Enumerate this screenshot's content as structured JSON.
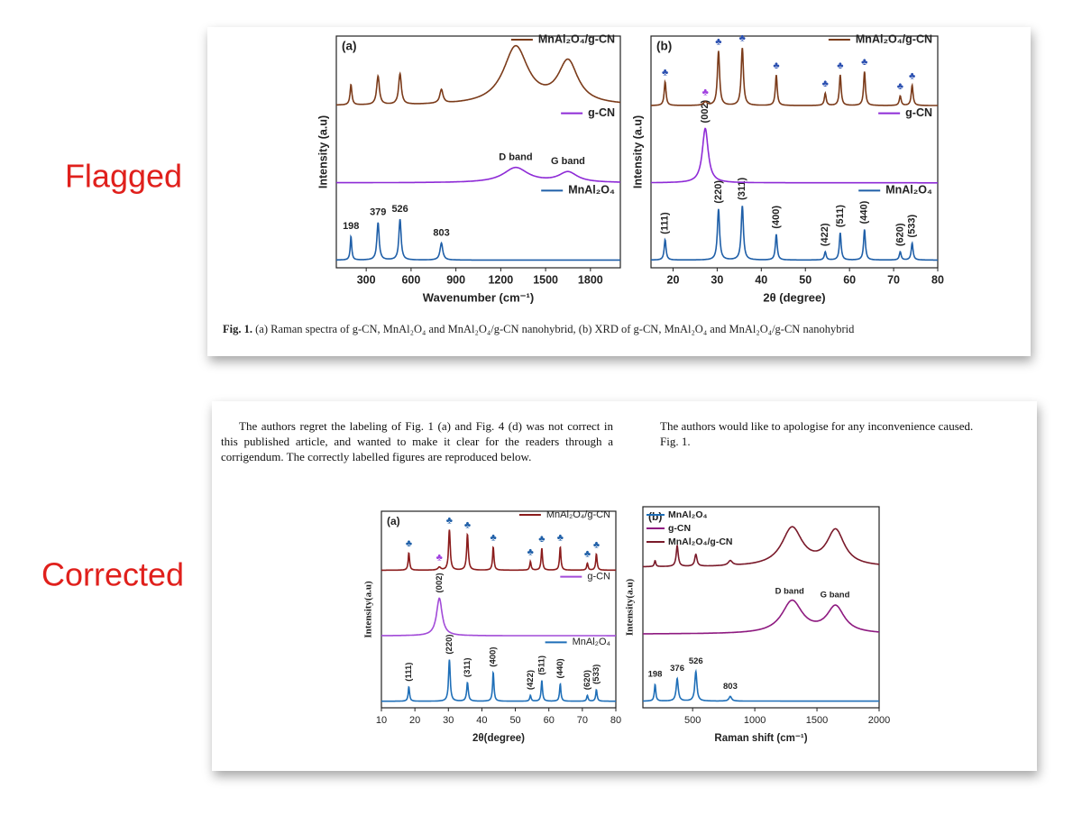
{
  "flagged_label": "Flagged",
  "corrected_label": "Corrected",
  "flagged": {
    "caption_label": "Fig. 1.",
    "caption_text": "(a) Raman spectra of g-CN, MnAl₂O₄ and MnAl₂O₄/g-CN nanohybrid, (b) XRD of g-CN, MnAl₂O₄ and MnAl₂O₄/g-CN nanohybrid",
    "charts": [
      {
        "type": "line",
        "title": "(a)",
        "xlabel": "Wavenumber (cm⁻¹)",
        "ylabel": "Intensity (a.u)",
        "xlim": [
          100,
          2000
        ],
        "xticks": [
          300,
          600,
          900,
          1200,
          1500,
          1800
        ],
        "legend": "band-right",
        "annotation_rotate": false,
        "series": [
          {
            "name": "MnAl₂O₄",
            "color": "#1f5fa8",
            "x": [
              198,
              379,
              526,
              803
            ],
            "values": [
              0.35,
              0.55,
              0.6,
              0.25
            ],
            "widths": [
              12,
              18,
              18,
              22
            ],
            "annotations": [
              {
                "text": "198",
                "x": 198
              },
              {
                "text": "379",
                "x": 379
              },
              {
                "text": "526",
                "x": 526
              },
              {
                "text": "803",
                "x": 803
              }
            ]
          },
          {
            "name": "g-CN",
            "color": "#8e2bd6",
            "x": [
              1300,
              1650
            ],
            "values": [
              0.22,
              0.15
            ],
            "widths": [
              200,
              150
            ],
            "annotations": [
              {
                "text": "D band",
                "x": 1300
              },
              {
                "text": "G band",
                "x": 1650
              }
            ]
          },
          {
            "name": "MnAl₂O₄/g-CN",
            "color": "#7b3b1a",
            "x": [
              198,
              379,
              526,
              803,
              1300,
              1650
            ],
            "values": [
              0.3,
              0.42,
              0.45,
              0.2,
              0.85,
              0.62
            ],
            "widths": [
              15,
              22,
              22,
              26,
              200,
              160
            ]
          }
        ]
      },
      {
        "type": "line",
        "title": "(b)",
        "xlabel": "2θ (degree)",
        "ylabel": "Intensity (a.u)",
        "xlim": [
          15,
          80
        ],
        "xticks": [
          20,
          30,
          40,
          50,
          60,
          70,
          80
        ],
        "legend": "band-right",
        "annotation_rotate": true,
        "marker_symbol": "♣",
        "series": [
          {
            "name": "MnAl₂O₄",
            "color": "#1f5fa8",
            "x": [
              18.2,
              30.3,
              35.7,
              43.4,
              54.5,
              57.9,
              63.4,
              71.5,
              74.2
            ],
            "values": [
              0.3,
              0.75,
              0.8,
              0.38,
              0.12,
              0.4,
              0.45,
              0.12,
              0.25
            ],
            "widths": [
              0.5,
              0.6,
              0.6,
              0.5,
              0.5,
              0.5,
              0.5,
              0.5,
              0.5
            ],
            "annotations": [
              {
                "text": "(111)",
                "x": 18.2
              },
              {
                "text": "(220)",
                "x": 30.3
              },
              {
                "text": "(311)",
                "x": 35.7
              },
              {
                "text": "(400)",
                "x": 43.4
              },
              {
                "text": "(422)",
                "x": 54.5
              },
              {
                "text": "(511)",
                "x": 57.9
              },
              {
                "text": "(440)",
                "x": 63.4
              },
              {
                "text": "(620)",
                "x": 71.5
              },
              {
                "text": "(533)",
                "x": 74.2
              }
            ]
          },
          {
            "name": "g-CN",
            "color": "#8e2bd6",
            "x": [
              27.3
            ],
            "values": [
              0.8
            ],
            "widths": [
              1.6
            ],
            "annotations": [
              {
                "text": "(002)",
                "x": 27.3
              }
            ]
          },
          {
            "name": "MnAl₂O₄/g-CN",
            "color": "#7b3b1a",
            "x": [
              18.2,
              27.3,
              30.3,
              35.7,
              43.4,
              54.5,
              57.9,
              63.4,
              71.5,
              74.2
            ],
            "values": [
              0.35,
              0.05,
              0.8,
              0.85,
              0.45,
              0.18,
              0.45,
              0.5,
              0.14,
              0.3
            ],
            "widths": [
              0.5,
              1.0,
              0.6,
              0.6,
              0.5,
              0.5,
              0.5,
              0.5,
              0.5,
              0.5
            ],
            "markers": [
              {
                "x": 18.2,
                "color": "#2a4fb0"
              },
              {
                "x": 27.3,
                "color": "#a040e0"
              },
              {
                "x": 30.3,
                "color": "#2a4fb0"
              },
              {
                "x": 35.7,
                "color": "#2a4fb0"
              },
              {
                "x": 43.4,
                "color": "#2a4fb0"
              },
              {
                "x": 54.5,
                "color": "#2a4fb0"
              },
              {
                "x": 57.9,
                "color": "#2a4fb0"
              },
              {
                "x": 63.4,
                "color": "#2a4fb0"
              },
              {
                "x": 71.5,
                "color": "#2a4fb0"
              },
              {
                "x": 74.2,
                "color": "#2a4fb0"
              }
            ]
          }
        ]
      }
    ]
  },
  "corrected": {
    "text_left": "The authors regret the labeling of Fig. 1 (a) and Fig. 4 (d) was not correct in this published article, and wanted to make it clear for the readers through a corrigendum. The correctly labelled figures are reproduced below.",
    "text_right": [
      "The authors would like to apologise for any inconvenience caused.",
      "Fig. 1."
    ],
    "charts": [
      {
        "type": "line",
        "title": "(a)",
        "xlabel": "2θ(degree)",
        "ylabel": "Intensity(a.u)",
        "xlim": [
          10,
          80
        ],
        "xticks": [
          10,
          20,
          30,
          40,
          50,
          60,
          70,
          80
        ],
        "legend": "band-right",
        "annotation_rotate": true,
        "marker_symbol": "♣",
        "series": [
          {
            "name": "MnAl₂O₄",
            "color": "#1f6fb8",
            "x": [
              18.2,
              30.3,
              35.7,
              43.4,
              54.5,
              57.9,
              63.4,
              71.5,
              74.2
            ],
            "values": [
              0.25,
              0.72,
              0.32,
              0.5,
              0.1,
              0.36,
              0.3,
              0.1,
              0.2
            ],
            "widths": [
              0.5,
              0.6,
              0.6,
              0.5,
              0.5,
              0.5,
              0.5,
              0.5,
              0.5
            ],
            "annotations": [
              {
                "text": "(111)",
                "x": 18.2
              },
              {
                "text": "(220)",
                "x": 30.3
              },
              {
                "text": "(311)",
                "x": 35.7
              },
              {
                "text": "(400)",
                "x": 43.4
              },
              {
                "text": "(422)",
                "x": 54.5
              },
              {
                "text": "(511)",
                "x": 57.9
              },
              {
                "text": "(440)",
                "x": 63.4
              },
              {
                "text": "(620)",
                "x": 71.5
              },
              {
                "text": "(533)",
                "x": 74.2
              }
            ]
          },
          {
            "name": "g-CN",
            "color": "#a24bd8",
            "x": [
              27.3
            ],
            "values": [
              0.65
            ],
            "widths": [
              2.0
            ],
            "annotations": [
              {
                "text": "(002)",
                "x": 27.3
              }
            ]
          },
          {
            "name": "MnAl₂O₄/g-CN",
            "color": "#8b1c1c",
            "x": [
              18.2,
              27.3,
              30.3,
              35.7,
              43.4,
              54.5,
              57.9,
              63.4,
              71.5,
              74.2
            ],
            "values": [
              0.3,
              0.05,
              0.7,
              0.62,
              0.4,
              0.15,
              0.38,
              0.4,
              0.12,
              0.28
            ],
            "widths": [
              0.5,
              1.0,
              0.6,
              0.6,
              0.5,
              0.5,
              0.5,
              0.5,
              0.5,
              0.5
            ],
            "markers": [
              {
                "x": 18.2,
                "color": "#1f5fa8"
              },
              {
                "x": 27.3,
                "color": "#a040e0"
              },
              {
                "x": 30.3,
                "color": "#1f5fa8"
              },
              {
                "x": 35.7,
                "color": "#1f5fa8"
              },
              {
                "x": 43.4,
                "color": "#1f5fa8"
              },
              {
                "x": 54.5,
                "color": "#1f5fa8"
              },
              {
                "x": 57.9,
                "color": "#1f5fa8"
              },
              {
                "x": 63.4,
                "color": "#1f5fa8"
              },
              {
                "x": 71.5,
                "color": "#1f5fa8"
              },
              {
                "x": 74.2,
                "color": "#1f5fa8"
              }
            ]
          }
        ]
      },
      {
        "type": "line",
        "title": "(b)",
        "xlabel": "Raman shift (cm⁻¹)",
        "ylabel": "Intensity(a.u)",
        "xlim": [
          100,
          2000
        ],
        "xticks": [
          500,
          1000,
          1500,
          2000
        ],
        "legend": "upper-left",
        "annotation_rotate": false,
        "series": [
          {
            "name": "MnAl₂O₄",
            "color": "#1f6fb8",
            "x": [
              198,
              376,
              526,
              803
            ],
            "values": [
              0.28,
              0.38,
              0.5,
              0.08
            ],
            "widths": [
              14,
              20,
              20,
              25
            ],
            "annotations": [
              {
                "text": "198",
                "x": 198
              },
              {
                "text": "376",
                "x": 376
              },
              {
                "text": "526",
                "x": 526
              },
              {
                "text": "803",
                "x": 803
              }
            ]
          },
          {
            "name": "g-CN",
            "color": "#8e1a80",
            "x": [
              1300,
              1650
            ],
            "values": [
              0.55,
              0.45
            ],
            "widths": [
              200,
              170
            ],
            "annotations": [
              {
                "text": "D band",
                "x": 1280
              },
              {
                "text": "G band",
                "x": 1645
              }
            ]
          },
          {
            "name": "MnAl₂O₄/g-CN",
            "color": "#7a1a2a",
            "x": [
              198,
              376,
              526,
              803,
              1300,
              1650
            ],
            "values": [
              0.1,
              0.35,
              0.2,
              0.08,
              0.65,
              0.6
            ],
            "widths": [
              14,
              20,
              22,
              40,
              200,
              170
            ]
          }
        ]
      }
    ]
  }
}
